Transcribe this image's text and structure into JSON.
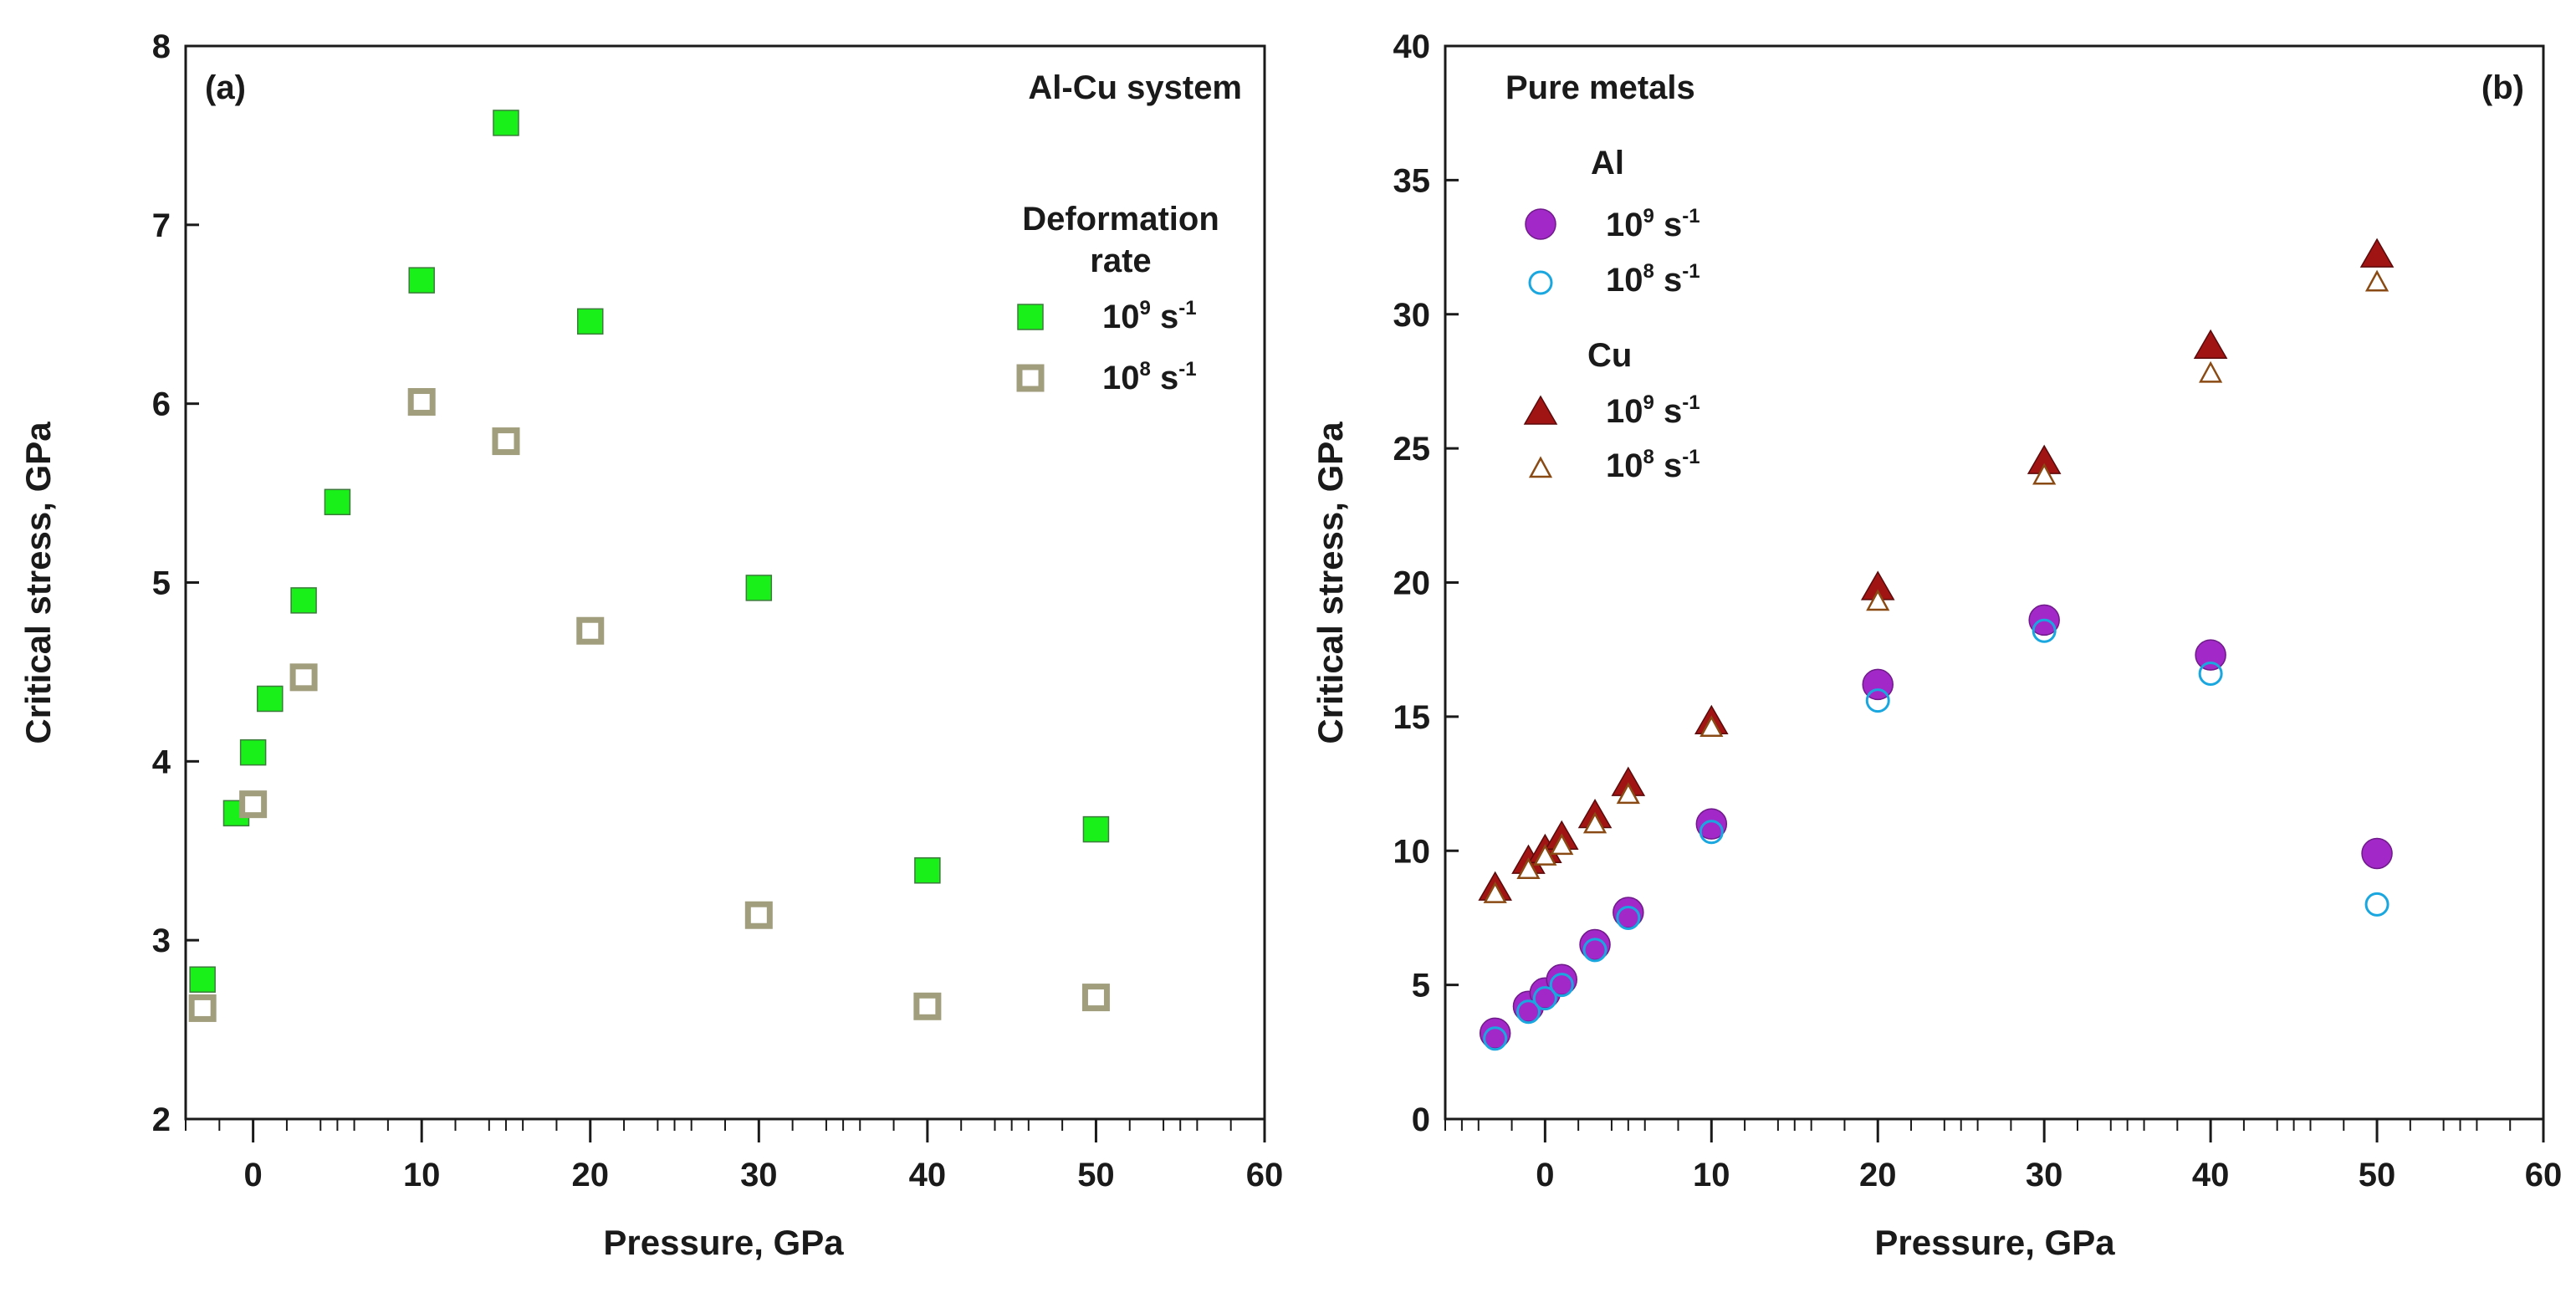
{
  "chart_data": [
    {
      "panel_label": "(a)",
      "title": "Al-Cu system",
      "type": "scatter",
      "xlabel": "Pressure, GPa",
      "ylabel": "Critical stress, GPa",
      "xlim": [
        -4,
        60
      ],
      "ylim": [
        2,
        8
      ],
      "xticks": [
        0,
        10,
        20,
        30,
        40,
        50,
        60
      ],
      "yticks": [
        2,
        3,
        4,
        5,
        6,
        7,
        8
      ],
      "legend": {
        "title_lines": [
          "Deformation",
          "rate"
        ],
        "placement": "top-right"
      },
      "series": [
        {
          "name": "10⁹ s⁻¹",
          "name_base": "10",
          "name_exp": "9",
          "name_unit": "s",
          "name_unit_exp": "-1",
          "marker": "square-filled",
          "color": "#19f019",
          "points": [
            [
              -3,
              2.78
            ],
            [
              -1,
              3.71
            ],
            [
              0,
              4.05
            ],
            [
              1,
              4.35
            ],
            [
              3,
              4.9
            ],
            [
              5,
              5.45
            ],
            [
              10,
              6.69
            ],
            [
              15,
              7.57
            ],
            [
              20,
              6.46
            ],
            [
              30,
              4.97
            ],
            [
              40,
              3.39
            ],
            [
              50,
              3.62
            ]
          ]
        },
        {
          "name": "10⁸ s⁻¹",
          "name_base": "10",
          "name_exp": "8",
          "name_unit": "s",
          "name_unit_exp": "-1",
          "marker": "square-open",
          "color": "#a09e7c",
          "points": [
            [
              -3,
              2.62
            ],
            [
              0,
              3.76
            ],
            [
              3,
              4.47
            ],
            [
              10,
              6.01
            ],
            [
              15,
              5.79
            ],
            [
              20,
              4.73
            ],
            [
              30,
              3.14
            ],
            [
              40,
              2.63
            ],
            [
              50,
              2.68
            ]
          ]
        }
      ]
    },
    {
      "panel_label": "(b)",
      "title": "Pure metals",
      "type": "scatter",
      "xlabel": "Pressure, GPa",
      "ylabel": "Critical stress, GPa",
      "xlim": [
        -6,
        60
      ],
      "ylim": [
        0,
        40
      ],
      "xticks": [
        0,
        10,
        20,
        30,
        40,
        50,
        60
      ],
      "yticks": [
        0,
        5,
        10,
        15,
        20,
        25,
        30,
        35,
        40
      ],
      "legend": {
        "placement": "top-left",
        "groups": [
          {
            "label": "Al",
            "series_indices": [
              0,
              1
            ]
          },
          {
            "label": "Cu",
            "series_indices": [
              2,
              3
            ]
          }
        ]
      },
      "series": [
        {
          "name": "10⁹ s⁻¹",
          "group": "Al",
          "name_base": "10",
          "name_exp": "9",
          "name_unit": "s",
          "name_unit_exp": "-1",
          "marker": "circle-filled",
          "color": "#a229c7",
          "points": [
            [
              -3,
              3.2
            ],
            [
              -1,
              4.2
            ],
            [
              0,
              4.7
            ],
            [
              1,
              5.2
            ],
            [
              3,
              6.5
            ],
            [
              5,
              7.7
            ],
            [
              10,
              11.0
            ],
            [
              20,
              16.2
            ],
            [
              30,
              18.6
            ],
            [
              40,
              17.3
            ],
            [
              50,
              9.9
            ]
          ]
        },
        {
          "name": "10⁸ s⁻¹",
          "group": "Al",
          "name_base": "10",
          "name_exp": "8",
          "name_unit": "s",
          "name_unit_exp": "-1",
          "marker": "circle-open",
          "color": "#1aa7e0",
          "points": [
            [
              -3,
              3.0
            ],
            [
              -1,
              4.0
            ],
            [
              0,
              4.5
            ],
            [
              1,
              5.0
            ],
            [
              3,
              6.3
            ],
            [
              5,
              7.5
            ],
            [
              10,
              10.7
            ],
            [
              20,
              15.6
            ],
            [
              30,
              18.2
            ],
            [
              40,
              16.6
            ],
            [
              50,
              8.0
            ]
          ]
        },
        {
          "name": "10⁹ s⁻¹",
          "group": "Cu",
          "name_base": "10",
          "name_exp": "9",
          "name_unit": "s",
          "name_unit_exp": "-1",
          "marker": "triangle-filled",
          "color": "#a01414",
          "points": [
            [
              -3,
              8.6
            ],
            [
              -1,
              9.6
            ],
            [
              0,
              10.0
            ],
            [
              1,
              10.5
            ],
            [
              3,
              11.3
            ],
            [
              5,
              12.5
            ],
            [
              10,
              14.8
            ],
            [
              20,
              19.8
            ],
            [
              30,
              24.5
            ],
            [
              40,
              28.8
            ],
            [
              50,
              32.2
            ]
          ]
        },
        {
          "name": "10⁸ s⁻¹",
          "group": "Cu",
          "name_base": "10",
          "name_exp": "8",
          "name_unit": "s",
          "name_unit_exp": "-1",
          "marker": "triangle-open",
          "color": "#8a4a14",
          "points": [
            [
              -3,
              8.4
            ],
            [
              -1,
              9.3
            ],
            [
              0,
              9.8
            ],
            [
              1,
              10.2
            ],
            [
              3,
              11.0
            ],
            [
              5,
              12.1
            ],
            [
              10,
              14.6
            ],
            [
              20,
              19.3
            ],
            [
              30,
              24.0
            ],
            [
              40,
              27.8
            ],
            [
              50,
              31.2
            ]
          ]
        }
      ]
    }
  ]
}
